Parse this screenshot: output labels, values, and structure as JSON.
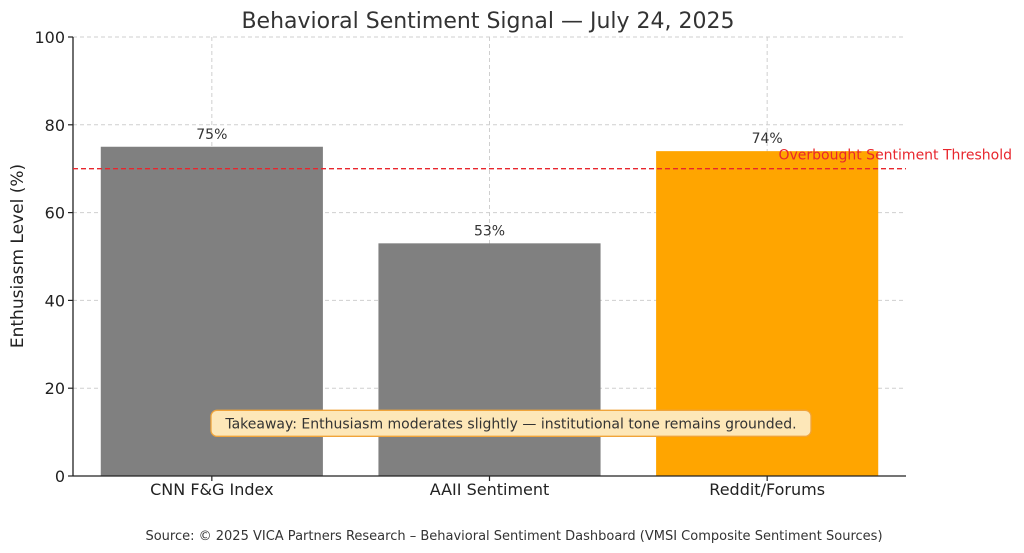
{
  "chart_data": {
    "type": "bar",
    "title": "Behavioral Sentiment Signal — July 24, 2025",
    "ylabel": "Enthusiasm Level (%)",
    "xlabel": "",
    "ylim": [
      0,
      100
    ],
    "yticks": [
      "0",
      "20",
      "40",
      "60",
      "80",
      "100"
    ],
    "grid": true,
    "categories": [
      "CNN F&G Index",
      "AAII Sentiment",
      "Reddit/Forums"
    ],
    "values": [
      75,
      53,
      74
    ],
    "value_labels": [
      "75%",
      "53%",
      "74%"
    ],
    "bar_colors": [
      "#808080",
      "#808080",
      "#FFA500"
    ],
    "threshold": {
      "value": 70,
      "label": "Overbought Sentiment Threshold",
      "color": "#e8262d"
    },
    "annotation": {
      "text": "Takeaway: Enthusiasm moderates slightly — institutional tone remains grounded.",
      "value": 12,
      "fill": "#fde7b8",
      "border": "#f0a43a"
    },
    "source": "Source: © 2025 VICA Partners Research – Behavioral Sentiment Dashboard (VMSI Composite Sentiment Sources)"
  }
}
